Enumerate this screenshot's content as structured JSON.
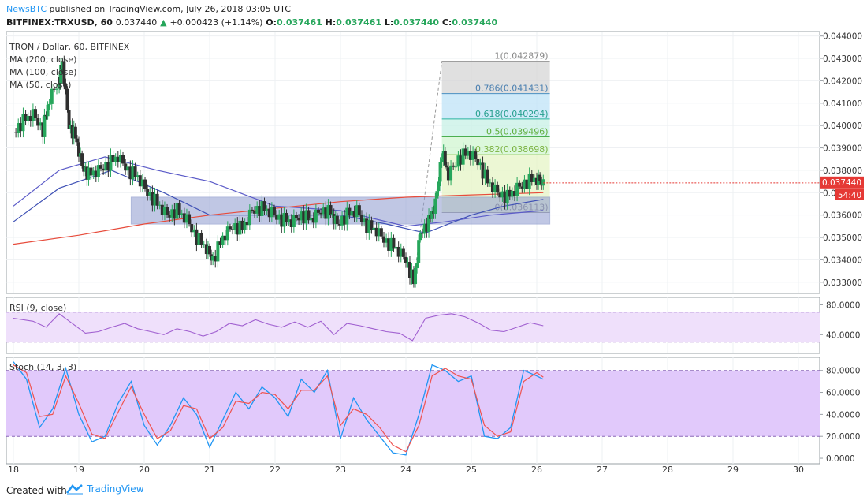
{
  "header": {
    "brand": "NewsBTC",
    "published_text": "published on TradingView.com, July 26, 2018 03:05 UTC",
    "symbol_line": "BITFINEX:TRXUSD, 60",
    "last": "0.037440",
    "change": "+0.000423 (+1.14%)",
    "o_label": "O:",
    "o": "0.037461",
    "h_label": "H:",
    "h": "0.037461",
    "l_label": "L:",
    "l": "0.037440",
    "c_label": "C:",
    "c": "0.037440"
  },
  "legend": {
    "title": "TRON / Dollar, 60, BITFINEX",
    "ma200": "MA (200, close)",
    "ma100": "MA (100, close)",
    "ma50": "MA (50, close)"
  },
  "panes": {
    "rsi_label": "RSI (9, close)",
    "stoch_label": "Stoch (14, 3, 3)"
  },
  "footer": {
    "created_with": "Created with",
    "tradingview": "TradingView"
  },
  "colors": {
    "up": "#26a65b",
    "down": "#2f2f2f",
    "ma200": "#e74c3c",
    "ma100": "#5b5bc8",
    "ma50": "#3f51b5",
    "box": "#8e9bcf",
    "rsi_band": "#efe0fb",
    "stoch_band": "#e1c9fb",
    "price_badge": "#e53935"
  },
  "chart_data": {
    "type": "candlestick",
    "title": "TRON / Dollar, 60, BITFINEX",
    "x_ticks": [
      "18",
      "19",
      "20",
      "21",
      "22",
      "23",
      "24",
      "25",
      "26",
      "27",
      "28",
      "29",
      "30"
    ],
    "price_ticks": [
      "0.044000",
      "0.043000",
      "0.042000",
      "0.041000",
      "0.040000",
      "0.039000",
      "0.038000",
      "0.037000",
      "0.036000",
      "0.035000",
      "0.034000",
      "0.033000"
    ],
    "price_ylim": [
      0.0325,
      0.0442
    ],
    "current_price_label": "0.037440",
    "countdown_label": "54:40",
    "fib_levels": [
      {
        "ratio": "1",
        "value": "0.042879",
        "label": "1(0.042879)"
      },
      {
        "ratio": "0.786",
        "value": "0.041431",
        "label": "0.786(0.041431)"
      },
      {
        "ratio": "0.618",
        "value": "0.040294",
        "label": "0.618(0.040294)"
      },
      {
        "ratio": "0.5",
        "value": "0.039496",
        "label": "0.5(0.039496)"
      },
      {
        "ratio": "0.382",
        "value": "0.038698",
        "label": "0.382(0.038698)"
      },
      {
        "ratio": "0",
        "value": "0.036113",
        "label": "0(0.036113)"
      }
    ],
    "fib_x_range": [
      24.55,
      26.2
    ],
    "range_box": {
      "x": [
        19.8,
        26.2
      ],
      "y": [
        0.0356,
        0.0368
      ]
    },
    "closes": [
      [
        18.0,
        0.0397
      ],
      [
        18.15,
        0.0402
      ],
      [
        18.3,
        0.0405
      ],
      [
        18.45,
        0.0398
      ],
      [
        18.55,
        0.0412
      ],
      [
        18.7,
        0.042
      ],
      [
        18.75,
        0.0428
      ],
      [
        18.85,
        0.04
      ],
      [
        18.95,
        0.0395
      ],
      [
        19.05,
        0.0382
      ],
      [
        19.15,
        0.0378
      ],
      [
        19.3,
        0.038
      ],
      [
        19.45,
        0.0383
      ],
      [
        19.6,
        0.0386
      ],
      [
        19.75,
        0.038
      ],
      [
        19.9,
        0.0377
      ],
      [
        20.05,
        0.037
      ],
      [
        20.2,
        0.0365
      ],
      [
        20.35,
        0.036
      ],
      [
        20.5,
        0.0362
      ],
      [
        20.65,
        0.0358
      ],
      [
        20.8,
        0.035
      ],
      [
        20.95,
        0.0345
      ],
      [
        21.05,
        0.034
      ],
      [
        21.2,
        0.035
      ],
      [
        21.35,
        0.0355
      ],
      [
        21.5,
        0.0354
      ],
      [
        21.65,
        0.0362
      ],
      [
        21.8,
        0.0363
      ],
      [
        21.95,
        0.0361
      ],
      [
        22.1,
        0.0358
      ],
      [
        22.25,
        0.0357
      ],
      [
        22.4,
        0.036
      ],
      [
        22.55,
        0.0358
      ],
      [
        22.7,
        0.0362
      ],
      [
        22.85,
        0.0361
      ],
      [
        22.95,
        0.0356
      ],
      [
        23.1,
        0.036
      ],
      [
        23.25,
        0.0362
      ],
      [
        23.4,
        0.0355
      ],
      [
        23.55,
        0.0353
      ],
      [
        23.7,
        0.0348
      ],
      [
        23.85,
        0.0345
      ],
      [
        24.0,
        0.034
      ],
      [
        24.12,
        0.033
      ],
      [
        24.22,
        0.0352
      ],
      [
        24.35,
        0.0357
      ],
      [
        24.45,
        0.0365
      ],
      [
        24.55,
        0.0388
      ],
      [
        24.65,
        0.0378
      ],
      [
        24.8,
        0.0385
      ],
      [
        24.95,
        0.0388
      ],
      [
        25.1,
        0.0384
      ],
      [
        25.25,
        0.0375
      ],
      [
        25.4,
        0.037
      ],
      [
        25.55,
        0.0368
      ],
      [
        25.7,
        0.0372
      ],
      [
        25.85,
        0.0375
      ],
      [
        26.0,
        0.0376
      ],
      [
        26.1,
        0.03744
      ]
    ],
    "ma200": [
      [
        18.0,
        0.0347
      ],
      [
        19.0,
        0.0351
      ],
      [
        20.0,
        0.0356
      ],
      [
        21.0,
        0.036
      ],
      [
        22.0,
        0.0363
      ],
      [
        23.0,
        0.0366
      ],
      [
        24.0,
        0.0368
      ],
      [
        25.0,
        0.0369
      ],
      [
        26.1,
        0.037
      ]
    ],
    "ma100": [
      [
        18.0,
        0.0364
      ],
      [
        18.7,
        0.038
      ],
      [
        19.4,
        0.0386
      ],
      [
        20.2,
        0.038
      ],
      [
        21.0,
        0.0375
      ],
      [
        22.0,
        0.0364
      ],
      [
        23.0,
        0.0362
      ],
      [
        24.0,
        0.0355
      ],
      [
        24.6,
        0.0357
      ],
      [
        25.3,
        0.036
      ],
      [
        26.1,
        0.0362
      ]
    ],
    "ma50": [
      [
        18.0,
        0.0357
      ],
      [
        18.7,
        0.0372
      ],
      [
        19.5,
        0.038
      ],
      [
        20.3,
        0.037
      ],
      [
        21.0,
        0.036
      ],
      [
        22.0,
        0.036
      ],
      [
        23.0,
        0.036
      ],
      [
        23.7,
        0.0356
      ],
      [
        24.3,
        0.0352
      ],
      [
        25.0,
        0.036
      ],
      [
        25.5,
        0.0364
      ],
      [
        26.1,
        0.0367
      ]
    ],
    "rsi": {
      "ticks": [
        "80.0000",
        "40.0000"
      ],
      "ylim": [
        15,
        90
      ],
      "band": [
        70,
        30
      ],
      "values": [
        [
          18.0,
          62
        ],
        [
          18.3,
          58
        ],
        [
          18.5,
          50
        ],
        [
          18.7,
          68
        ],
        [
          18.9,
          55
        ],
        [
          19.1,
          42
        ],
        [
          19.3,
          44
        ],
        [
          19.5,
          50
        ],
        [
          19.7,
          55
        ],
        [
          19.9,
          48
        ],
        [
          20.1,
          44
        ],
        [
          20.3,
          40
        ],
        [
          20.5,
          48
        ],
        [
          20.7,
          44
        ],
        [
          20.9,
          38
        ],
        [
          21.1,
          44
        ],
        [
          21.3,
          55
        ],
        [
          21.5,
          52
        ],
        [
          21.7,
          60
        ],
        [
          21.9,
          54
        ],
        [
          22.1,
          50
        ],
        [
          22.3,
          57
        ],
        [
          22.5,
          50
        ],
        [
          22.7,
          58
        ],
        [
          22.9,
          40
        ],
        [
          23.1,
          55
        ],
        [
          23.3,
          52
        ],
        [
          23.5,
          48
        ],
        [
          23.7,
          44
        ],
        [
          23.9,
          42
        ],
        [
          24.1,
          32
        ],
        [
          24.3,
          62
        ],
        [
          24.5,
          66
        ],
        [
          24.7,
          68
        ],
        [
          24.9,
          64
        ],
        [
          25.1,
          56
        ],
        [
          25.3,
          46
        ],
        [
          25.5,
          44
        ],
        [
          25.7,
          50
        ],
        [
          25.9,
          56
        ],
        [
          26.1,
          52
        ]
      ]
    },
    "stoch": {
      "ticks": [
        "80.0000",
        "60.0000",
        "40.0000",
        "20.0000",
        "0.0000"
      ],
      "ylim": [
        -5,
        92
      ],
      "band": [
        80,
        20
      ],
      "k": [
        [
          18.0,
          88
        ],
        [
          18.2,
          72
        ],
        [
          18.4,
          28
        ],
        [
          18.6,
          45
        ],
        [
          18.8,
          82
        ],
        [
          19.0,
          40
        ],
        [
          19.2,
          15
        ],
        [
          19.4,
          20
        ],
        [
          19.6,
          50
        ],
        [
          19.8,
          70
        ],
        [
          20.0,
          30
        ],
        [
          20.2,
          12
        ],
        [
          20.4,
          30
        ],
        [
          20.6,
          55
        ],
        [
          20.8,
          40
        ],
        [
          21.0,
          10
        ],
        [
          21.2,
          35
        ],
        [
          21.4,
          60
        ],
        [
          21.6,
          45
        ],
        [
          21.8,
          65
        ],
        [
          22.0,
          55
        ],
        [
          22.2,
          38
        ],
        [
          22.4,
          72
        ],
        [
          22.6,
          60
        ],
        [
          22.8,
          80
        ],
        [
          23.0,
          18
        ],
        [
          23.2,
          55
        ],
        [
          23.4,
          35
        ],
        [
          23.6,
          20
        ],
        [
          23.8,
          5
        ],
        [
          24.0,
          3
        ],
        [
          24.2,
          40
        ],
        [
          24.4,
          85
        ],
        [
          24.6,
          80
        ],
        [
          24.8,
          70
        ],
        [
          25.0,
          75
        ],
        [
          25.2,
          20
        ],
        [
          25.4,
          18
        ],
        [
          25.6,
          28
        ],
        [
          25.8,
          80
        ],
        [
          26.0,
          75
        ],
        [
          26.1,
          72
        ]
      ],
      "d": [
        [
          18.0,
          85
        ],
        [
          18.2,
          78
        ],
        [
          18.4,
          38
        ],
        [
          18.6,
          40
        ],
        [
          18.8,
          75
        ],
        [
          19.0,
          50
        ],
        [
          19.2,
          22
        ],
        [
          19.4,
          18
        ],
        [
          19.6,
          42
        ],
        [
          19.8,
          65
        ],
        [
          20.0,
          40
        ],
        [
          20.2,
          18
        ],
        [
          20.4,
          25
        ],
        [
          20.6,
          48
        ],
        [
          20.8,
          45
        ],
        [
          21.0,
          18
        ],
        [
          21.2,
          28
        ],
        [
          21.4,
          52
        ],
        [
          21.6,
          50
        ],
        [
          21.8,
          60
        ],
        [
          22.0,
          58
        ],
        [
          22.2,
          45
        ],
        [
          22.4,
          62
        ],
        [
          22.6,
          62
        ],
        [
          22.8,
          75
        ],
        [
          23.0,
          30
        ],
        [
          23.2,
          45
        ],
        [
          23.4,
          40
        ],
        [
          23.6,
          28
        ],
        [
          23.8,
          12
        ],
        [
          24.0,
          6
        ],
        [
          24.2,
          30
        ],
        [
          24.4,
          75
        ],
        [
          24.6,
          82
        ],
        [
          24.8,
          75
        ],
        [
          25.0,
          72
        ],
        [
          25.2,
          30
        ],
        [
          25.4,
          20
        ],
        [
          25.6,
          24
        ],
        [
          25.8,
          70
        ],
        [
          26.0,
          78
        ],
        [
          26.1,
          74
        ]
      ]
    }
  }
}
